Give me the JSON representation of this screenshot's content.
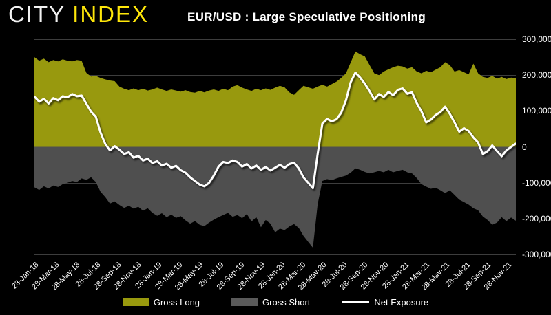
{
  "header": {
    "brand_city": "CITY",
    "brand_index": "INDEX",
    "title": "EUR/USD : Large Speculative Positioning"
  },
  "colors": {
    "background": "#000000",
    "grid": "#3d3d3d",
    "axis_text": "#ffffff",
    "brand_city": "#f2f2f2",
    "brand_yellow": "#ffe70a",
    "gross_long": "#98990e",
    "gross_short": "#4f4f4f",
    "legend_short_swatch": "#5a5a5a",
    "net_line": "#ffffff"
  },
  "legend": {
    "items": [
      {
        "label": "Gross Long",
        "swatch": "area",
        "color": "#98990e"
      },
      {
        "label": "Gross Short",
        "swatch": "area",
        "color": "#5a5a5a"
      },
      {
        "label": "Net Exposure",
        "swatch": "line",
        "color": "#ffffff"
      }
    ]
  },
  "chart_data": {
    "type": "area",
    "title": "EUR/USD : Large Speculative Positioning",
    "grid": "horizontal",
    "legend_position": "bottom",
    "ylim": [
      -300000,
      300000
    ],
    "y_tick_labels": [
      "300,000",
      "200,000",
      "100,000",
      "0",
      "-100,000",
      "-200,000",
      "-300,000"
    ],
    "x_tick_labels": [
      "28-Jan-18",
      "28-Mar-18",
      "28-May-18",
      "28-Jul-18",
      "28-Sep-18",
      "28-Nov-18",
      "28-Jan-19",
      "28-Mar-19",
      "28-May-19",
      "28-Jul-19",
      "28-Sep-19",
      "28-Nov-19",
      "28-Jan-20",
      "28-Mar-20",
      "28-May-20",
      "28-Jul-20",
      "28-Sep-20",
      "28-Nov-20",
      "28-Jan-21",
      "28-Mar-21",
      "28-May-21",
      "28-Jul-21",
      "28-Sep-21",
      "28-Nov-21"
    ],
    "x_start_label": "28-Jan-18",
    "sample_interval_weeks": 2,
    "series": [
      {
        "name": "Gross Long",
        "render": "area",
        "color": "#98990e",
        "values_thousands": [
          250,
          240,
          246,
          236,
          242,
          238,
          244,
          240,
          238,
          242,
          240,
          206,
          196,
          198,
          192,
          188,
          185,
          183,
          168,
          162,
          158,
          163,
          158,
          162,
          157,
          160,
          165,
          160,
          156,
          160,
          157,
          154,
          158,
          153,
          151,
          156,
          152,
          157,
          160,
          156,
          162,
          158,
          168,
          172,
          165,
          160,
          156,
          162,
          158,
          163,
          159,
          165,
          170,
          166,
          152,
          145,
          158,
          170,
          166,
          162,
          168,
          173,
          168,
          175,
          182,
          192,
          205,
          235,
          266,
          258,
          252,
          228,
          205,
          200,
          210,
          216,
          222,
          226,
          224,
          218,
          222,
          210,
          205,
          212,
          208,
          215,
          222,
          236,
          228,
          210,
          214,
          208,
          202,
          232,
          205,
          195,
          192,
          198,
          190,
          195,
          189,
          193,
          191
        ]
      },
      {
        "name": "Gross Short",
        "render": "area",
        "color": "#4f4f4f",
        "values_thousands": [
          -113,
          -120,
          -110,
          -116,
          -108,
          -112,
          -104,
          -100,
          -95,
          -98,
          -88,
          -92,
          -85,
          -98,
          -125,
          -140,
          -158,
          -152,
          -162,
          -170,
          -164,
          -172,
          -167,
          -178,
          -171,
          -184,
          -192,
          -185,
          -196,
          -189,
          -198,
          -193,
          -205,
          -214,
          -207,
          -217,
          -221,
          -211,
          -203,
          -196,
          -190,
          -184,
          -195,
          -190,
          -199,
          -187,
          -208,
          -196,
          -224,
          -204,
          -214,
          -238,
          -228,
          -232,
          -222,
          -215,
          -226,
          -248,
          -265,
          -281,
          -160,
          -95,
          -90,
          -93,
          -88,
          -84,
          -80,
          -72,
          -60,
          -64,
          -70,
          -74,
          -71,
          -67,
          -71,
          -64,
          -71,
          -67,
          -64,
          -71,
          -74,
          -87,
          -104,
          -111,
          -117,
          -114,
          -121,
          -129,
          -121,
          -134,
          -147,
          -154,
          -161,
          -171,
          -177,
          -194,
          -204,
          -217,
          -211,
          -196,
          -207,
          -197,
          -206
        ]
      },
      {
        "name": "Net Exposure",
        "render": "line",
        "color": "#ffffff",
        "values_thousands": [
          140,
          126,
          134,
          121,
          136,
          130,
          141,
          138,
          147,
          141,
          143,
          120,
          98,
          84,
          40,
          8,
          -10,
          2,
          -8,
          -20,
          -15,
          -30,
          -25,
          -38,
          -33,
          -45,
          -40,
          -52,
          -47,
          -58,
          -53,
          -65,
          -72,
          -85,
          -95,
          -105,
          -110,
          -100,
          -80,
          -55,
          -42,
          -45,
          -38,
          -42,
          -55,
          -48,
          -60,
          -52,
          -64,
          -56,
          -66,
          -58,
          -50,
          -58,
          -48,
          -44,
          -60,
          -85,
          -100,
          -115,
          -20,
          65,
          78,
          71,
          77,
          95,
          130,
          180,
          207,
          193,
          176,
          155,
          132,
          147,
          139,
          153,
          144,
          159,
          163,
          148,
          152,
          122,
          99,
          68,
          76,
          89,
          97,
          112,
          92,
          68,
          42,
          52,
          44,
          26,
          12,
          -20,
          -12,
          4,
          -12,
          -26,
          -10,
          0,
          9
        ]
      }
    ]
  }
}
